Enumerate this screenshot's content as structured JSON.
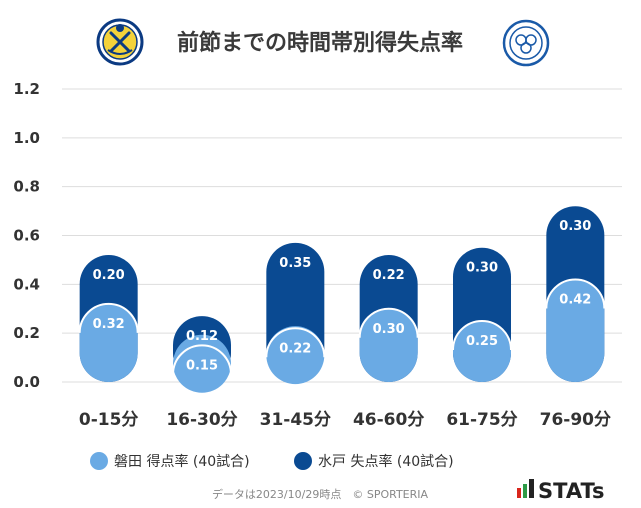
{
  "title": "前節までの時間帯別得失点率",
  "footnote": "データは2023/10/29時点　© SPORTERIA",
  "brand": "STATs",
  "logos": {
    "left_team_icon": "jubilo-iwata-crest-icon",
    "right_team_icon": "mito-hollyhock-crest-icon",
    "brand_icon": "stats-bars-icon"
  },
  "colors": {
    "iwata": "#6aaae4",
    "mito": "#0a4a92",
    "grid": "#dddddd",
    "brand_red": "#d9261c",
    "brand_green": "#2e9b47",
    "brand_dark": "#222222"
  },
  "chart_data": {
    "type": "bar",
    "stacked": true,
    "categories": [
      "0-15分",
      "16-30分",
      "31-45分",
      "46-60分",
      "61-75分",
      "76-90分"
    ],
    "series": [
      {
        "name": "磐田 得点率 (40試合)",
        "values": [
          0.32,
          0.15,
          0.22,
          0.3,
          0.25,
          0.42
        ],
        "labels": [
          "0.32",
          "0.15",
          "0.22",
          "0.30",
          "0.25",
          "0.42"
        ]
      },
      {
        "name": "水戸 失点率 (40試合)",
        "values": [
          0.2,
          0.12,
          0.35,
          0.22,
          0.3,
          0.3
        ],
        "labels": [
          "0.20",
          "0.12",
          "0.35",
          "0.22",
          "0.30",
          "0.30"
        ]
      }
    ],
    "ylim": [
      0,
      1.2
    ],
    "yticks": [
      "0.0",
      "0.2",
      "0.4",
      "0.6",
      "0.8",
      "1.0",
      "1.2"
    ],
    "ytick_values": [
      0,
      0.2,
      0.4,
      0.6,
      0.8,
      1.0,
      1.2
    ],
    "grid": true,
    "legend_position": "bottom"
  }
}
